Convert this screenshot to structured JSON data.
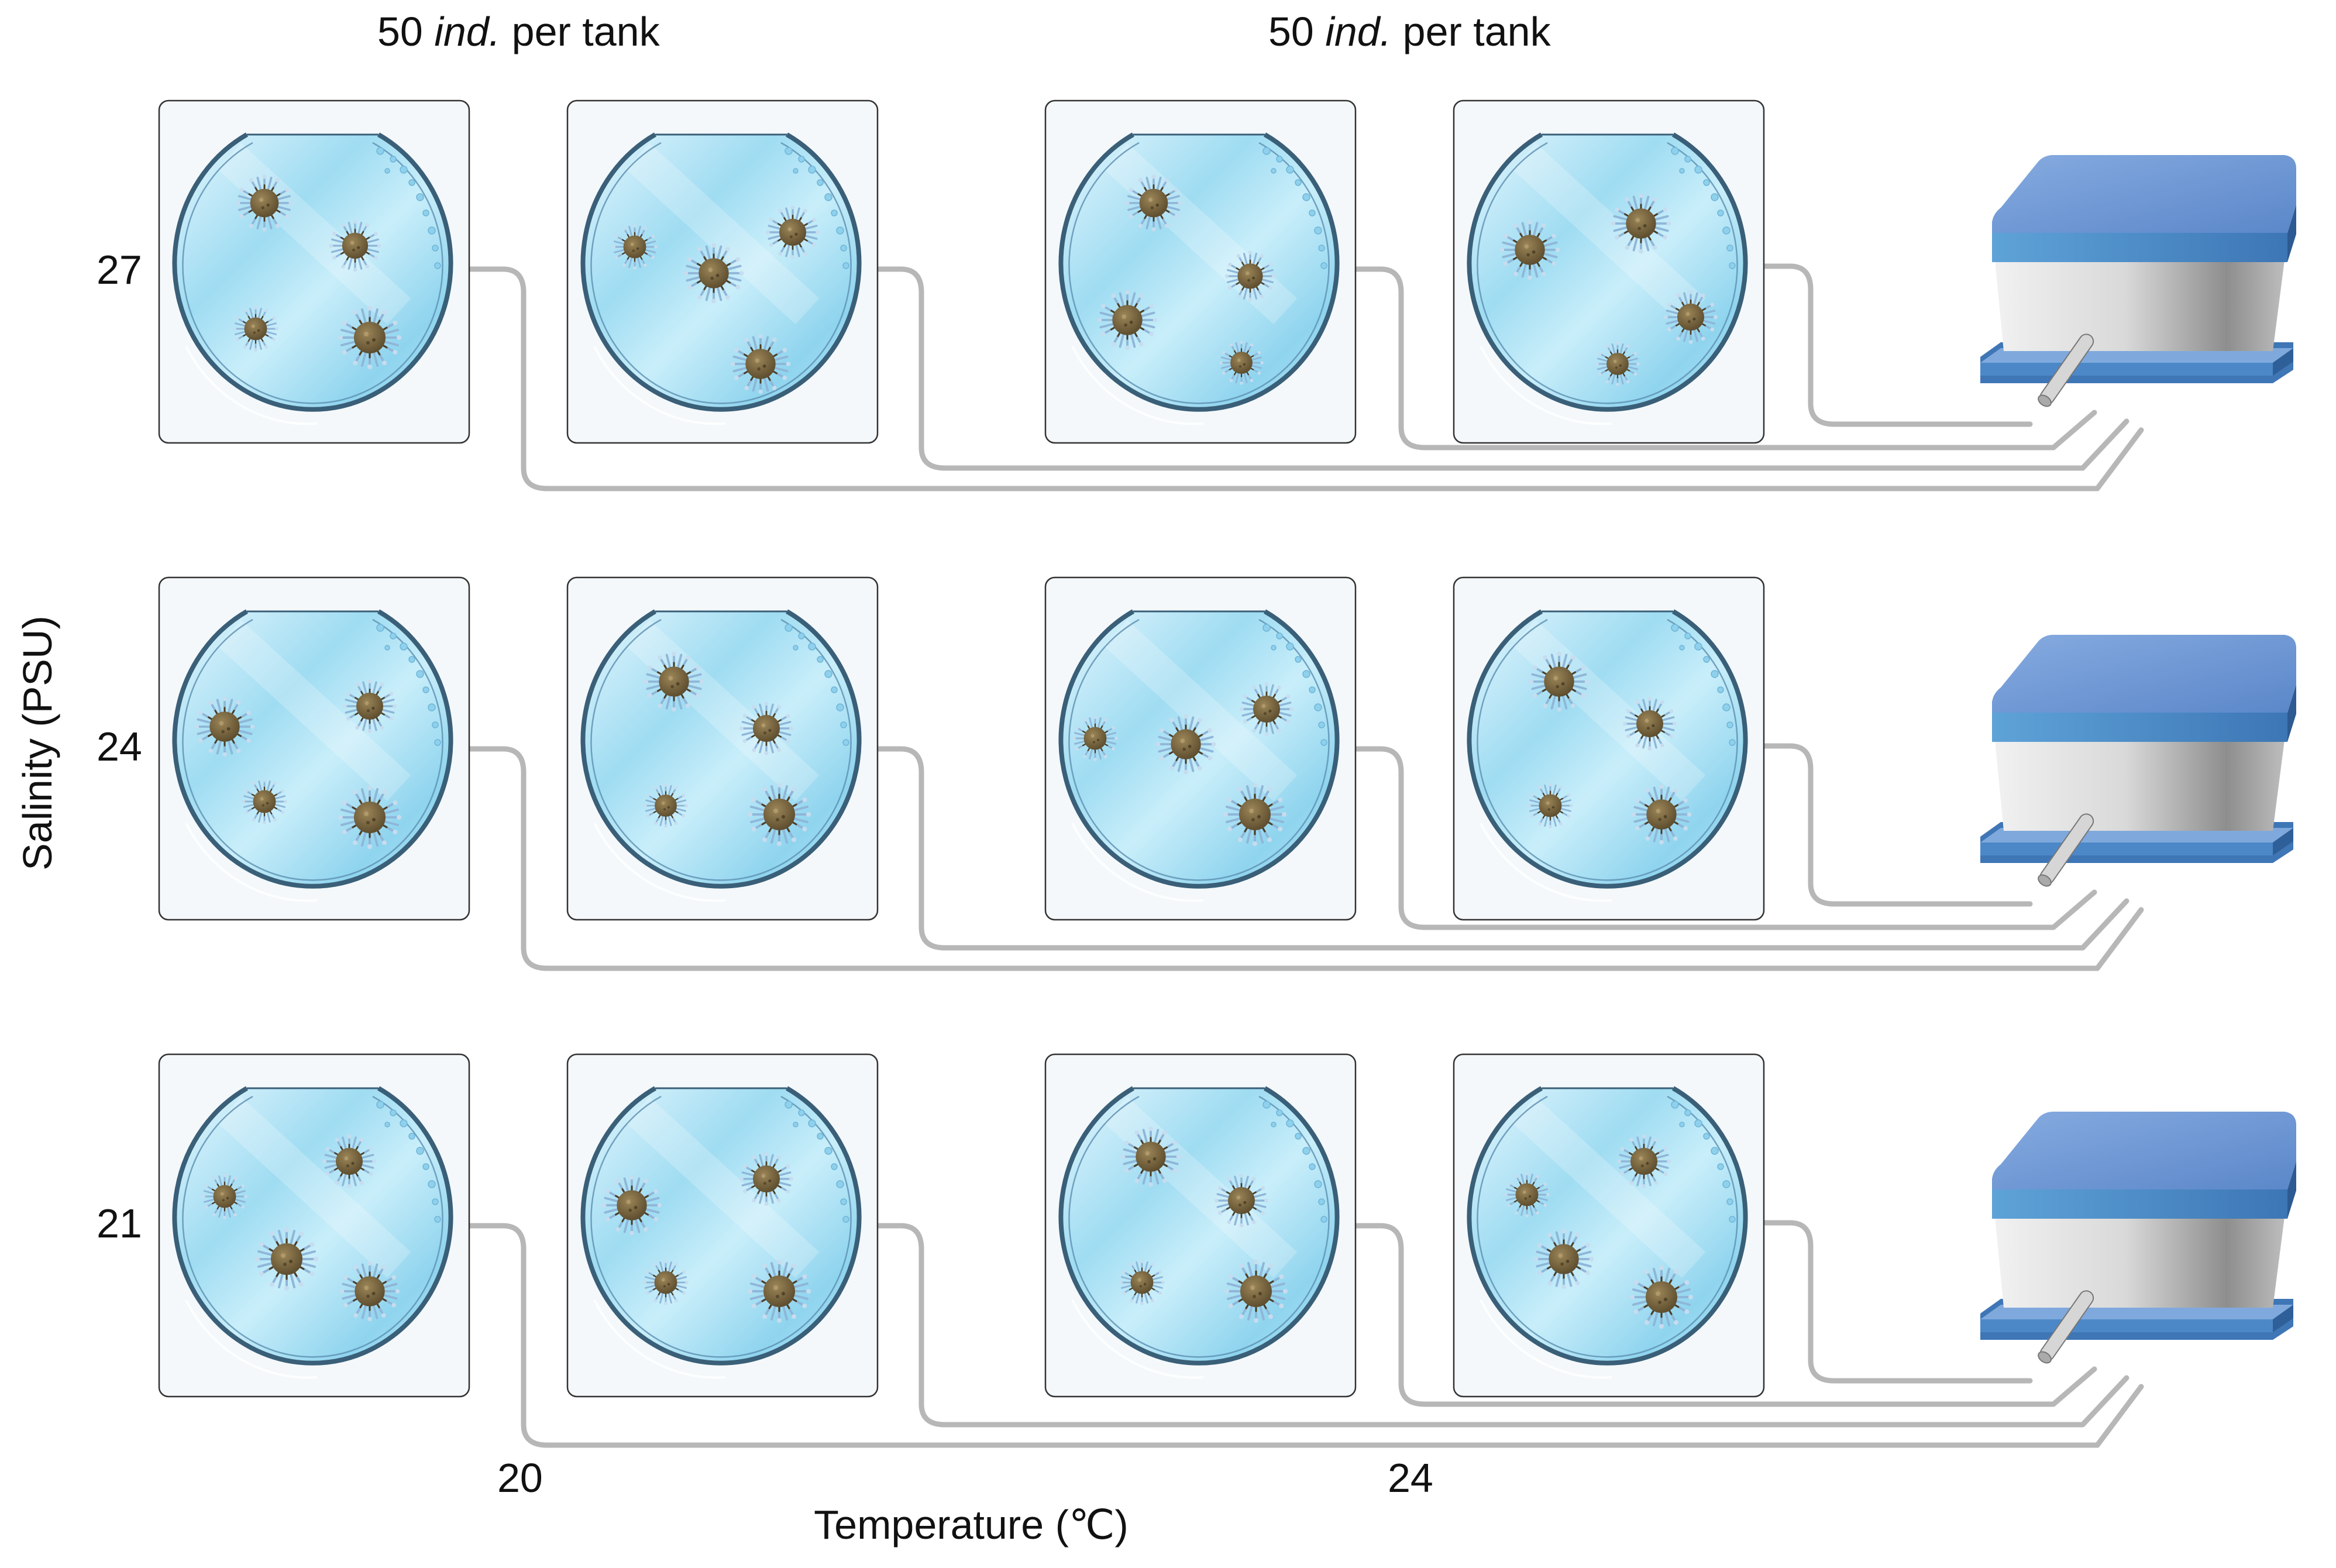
{
  "header": {
    "label_left": {
      "number": "50",
      "ind": "ind.",
      "rest": "per tank"
    },
    "label_right": {
      "number": "50",
      "ind": "ind.",
      "rest": "per tank"
    }
  },
  "axes": {
    "y_title": "Salinity (PSU)",
    "x_title": "Temperature (℃)",
    "salinity_levels": [
      "27",
      "24",
      "21"
    ],
    "temperature_levels": [
      "20",
      "24"
    ]
  },
  "layout_info": {
    "tanks_per_row": 4,
    "animals_per_tank_shown": 4,
    "rows": [
      "27",
      "24",
      "21"
    ]
  },
  "colors": {
    "water_light": "#d6f1fb",
    "water_dark": "#8ed3ee",
    "tank_rim": "#3a5f78",
    "panel_bg": "#f4f8fb",
    "panel_border": "#333333",
    "tube": "#b7b7b7",
    "chiller_top": "#6f9bd6",
    "chiller_band": "#4a8fc9",
    "chiller_base": "#4c88c8",
    "urchin_body": "#6a5836",
    "urchin_spine": "#9fc3de"
  },
  "icons": [
    "urchin-icon",
    "water-chiller-icon",
    "tank-icon"
  ]
}
